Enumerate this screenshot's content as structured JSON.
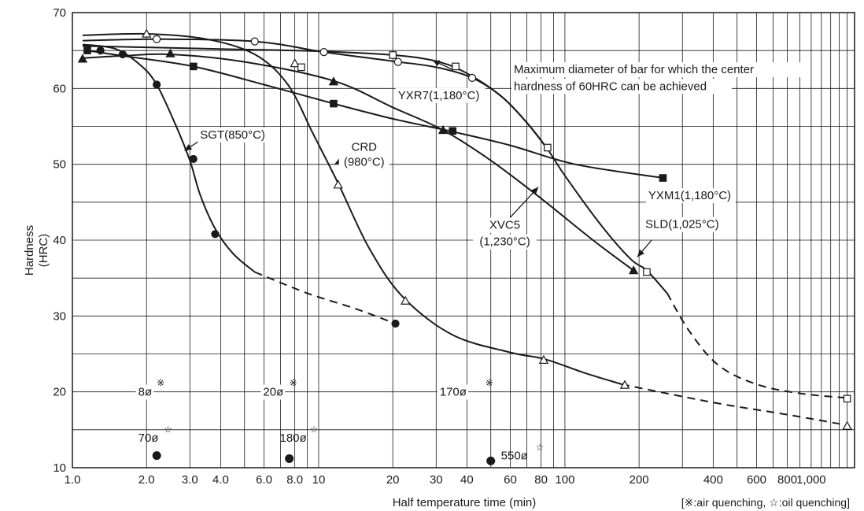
{
  "chart_data": {
    "type": "line",
    "xscale": "log",
    "xlim": [
      1.0,
      1500
    ],
    "ylim": [
      10,
      70
    ],
    "grid": true,
    "xlabel": "Half temperature time (min)",
    "ylabel_lines": [
      "Hardness",
      "(HRC)"
    ],
    "footnote": "[※:air quenching, ☆:oil quenching]",
    "colors": {
      "line": "#1a1a1a",
      "grid": "#1a1a1a",
      "frame": "#1a1a1a"
    },
    "x_ticks": [
      {
        "v": 1.0,
        "label": "1.0"
      },
      {
        "v": 2.0,
        "label": "2.0"
      },
      {
        "v": 3.0,
        "label": "3.0"
      },
      {
        "v": 4.0,
        "label": "4.0"
      },
      {
        "v": 6.0,
        "label": "6.0"
      },
      {
        "v": 8.0,
        "label": "8.0"
      },
      {
        "v": 10,
        "label": "10"
      },
      {
        "v": 20,
        "label": "20"
      },
      {
        "v": 30,
        "label": "30"
      },
      {
        "v": 40,
        "label": "40"
      },
      {
        "v": 60,
        "label": "60"
      },
      {
        "v": 80,
        "label": "80"
      },
      {
        "v": 100,
        "label": "100"
      },
      {
        "v": 200,
        "label": "200"
      },
      {
        "v": 400,
        "label": "400"
      },
      {
        "v": 600,
        "label": "600"
      },
      {
        "v": 800,
        "label": "800"
      },
      {
        "v": 1000,
        "label": "1,000"
      }
    ],
    "y_ticks": [
      {
        "v": 10,
        "label": "10"
      },
      {
        "v": 20,
        "label": "20"
      },
      {
        "v": 30,
        "label": "30"
      },
      {
        "v": 40,
        "label": "40"
      },
      {
        "v": 50,
        "label": "50"
      },
      {
        "v": 60,
        "label": "60"
      },
      {
        "v": 70,
        "label": "70"
      }
    ],
    "x_grid": [
      1,
      2,
      3,
      4,
      5,
      6,
      7,
      8,
      9,
      10,
      20,
      30,
      40,
      50,
      60,
      70,
      80,
      90,
      100,
      200,
      300,
      400,
      500,
      600,
      700,
      800,
      900,
      1000,
      1100,
      1200,
      1300,
      1400
    ],
    "y_grid": [
      15,
      20,
      25,
      30,
      35,
      40,
      45,
      50,
      55,
      60,
      65
    ],
    "series": [
      {
        "name": "SGT(850°C)",
        "marker": "circle-filled",
        "solid": [
          [
            1.1,
            65.8
          ],
          [
            1.5,
            65.2
          ],
          [
            1.9,
            63.0
          ],
          [
            2.2,
            60.5
          ],
          [
            2.6,
            55.5
          ],
          [
            3.0,
            50.5
          ],
          [
            3.3,
            46.0
          ],
          [
            3.8,
            41.5
          ],
          [
            4.5,
            38.2
          ],
          [
            5.5,
            35.8
          ]
        ],
        "dashed": [
          [
            5.5,
            35.8
          ],
          [
            9,
            33.0
          ],
          [
            14,
            31.0
          ],
          [
            20.5,
            29.0
          ]
        ],
        "markers": [
          [
            1.3,
            65.0
          ],
          [
            1.6,
            64.5
          ],
          [
            2.2,
            60.5
          ],
          [
            3.1,
            50.7
          ],
          [
            3.8,
            40.8
          ],
          [
            20.5,
            29.0
          ]
        ]
      },
      {
        "name": "CRD",
        "marker": "triangle-open",
        "solid": [
          [
            1.1,
            67.0
          ],
          [
            2.0,
            67.2
          ],
          [
            3.5,
            66.5
          ],
          [
            5.5,
            64.5
          ],
          [
            7.5,
            60.5
          ],
          [
            9.5,
            54.0
          ],
          [
            12,
            47.5
          ],
          [
            16,
            39.0
          ],
          [
            22,
            32.5
          ],
          [
            35,
            27.5
          ],
          [
            60,
            25.2
          ],
          [
            83,
            24.3
          ],
          [
            120,
            22.5
          ],
          [
            170,
            21.0
          ]
        ],
        "dashed": [
          [
            170,
            21.0
          ],
          [
            400,
            18.6
          ],
          [
            800,
            17.0
          ],
          [
            1400,
            15.6
          ]
        ],
        "markers": [
          [
            2.0,
            67.2
          ],
          [
            8.0,
            63.3
          ],
          [
            12,
            47.3
          ],
          [
            22.5,
            32.0
          ],
          [
            82,
            24.2
          ],
          [
            175,
            20.9
          ],
          [
            1400,
            15.5
          ]
        ]
      },
      {
        "name": "YXR7(1,180°C)",
        "marker": "circle-open",
        "solid": [
          [
            1.1,
            66.3
          ],
          [
            2.2,
            66.5
          ],
          [
            5.5,
            66.2
          ],
          [
            10.5,
            64.8
          ],
          [
            20,
            63.6
          ],
          [
            30,
            62.8
          ],
          [
            42,
            61.4
          ],
          [
            55,
            59.0
          ],
          [
            70,
            55.5
          ],
          [
            85,
            52.0
          ]
        ],
        "markers": [
          [
            2.2,
            66.5
          ],
          [
            5.5,
            66.2
          ],
          [
            10.5,
            64.8
          ],
          [
            21,
            63.5
          ],
          [
            42,
            61.4
          ]
        ]
      },
      {
        "name": "XVC5",
        "marker": "triangle-filled",
        "solid": [
          [
            1.1,
            64.0
          ],
          [
            1.6,
            64.3
          ],
          [
            2.5,
            64.5
          ],
          [
            5,
            63.5
          ],
          [
            11.5,
            61.0
          ],
          [
            20,
            57.5
          ],
          [
            32,
            54.5
          ],
          [
            50,
            50.5
          ],
          [
            80,
            45.5
          ],
          [
            130,
            40.0
          ],
          [
            190,
            36.0
          ]
        ],
        "markers": [
          [
            1.1,
            63.9
          ],
          [
            2.5,
            64.6
          ],
          [
            11.5,
            60.9
          ],
          [
            32,
            54.5
          ],
          [
            190,
            36.0
          ]
        ]
      },
      {
        "name": "YXM1(1,180°C)",
        "marker": "square-filled",
        "solid": [
          [
            1.15,
            65.0
          ],
          [
            1.6,
            64.3
          ],
          [
            3.1,
            62.9
          ],
          [
            6,
            60.5
          ],
          [
            11.5,
            58.0
          ],
          [
            20,
            56.0
          ],
          [
            35,
            54.3
          ],
          [
            60,
            52.5
          ],
          [
            110,
            50.0
          ],
          [
            250,
            48.2
          ]
        ],
        "markers": [
          [
            1.15,
            65.0
          ],
          [
            3.1,
            62.9
          ],
          [
            11.5,
            58.0
          ],
          [
            35,
            54.4
          ],
          [
            250,
            48.2
          ]
        ]
      },
      {
        "name": "SLD(1,025°C)",
        "marker": "square-open",
        "solid": [
          [
            1.1,
            65.6
          ],
          [
            4,
            65.2
          ],
          [
            10,
            64.9
          ],
          [
            20,
            64.4
          ],
          [
            30,
            63.6
          ],
          [
            40,
            62.0
          ],
          [
            55,
            59.0
          ],
          [
            70,
            55.5
          ],
          [
            85,
            52.0
          ],
          [
            100,
            48.5
          ],
          [
            140,
            42.0
          ],
          [
            185,
            37.5
          ],
          [
            215,
            36.0
          ],
          [
            260,
            33.0
          ]
        ],
        "dashed": [
          [
            260,
            33.0
          ],
          [
            320,
            28.0
          ],
          [
            420,
            23.5
          ],
          [
            600,
            21.0
          ],
          [
            900,
            19.8
          ],
          [
            1400,
            19.2
          ]
        ],
        "markers": [
          [
            8.5,
            62.8
          ],
          [
            20,
            64.4
          ],
          [
            36,
            62.9
          ],
          [
            85,
            52.2
          ],
          [
            215,
            35.8
          ],
          [
            1400,
            19.1
          ]
        ]
      }
    ],
    "extra_points": {
      "oil_quench": [
        [
          2.2,
          11.6
        ],
        [
          7.6,
          11.2
        ],
        [
          50,
          10.9
        ]
      ]
    },
    "labels": {
      "sgt": "SGT(850°C)",
      "crd_1": "CRD",
      "crd_2": "(980°C)",
      "yxr7": "YXR7(1,180°C)",
      "max_dia_1": "Maximum diameter of bar for which the center",
      "max_dia_2": "hardness of 60HRC can be achieved",
      "yxm1": "YXM1(1,180°C)",
      "xvc5_1": "XVC5",
      "xvc5_2": "(1,230°C)",
      "sld": "SLD(1,025°C)",
      "d8": "8ø",
      "d20": "20ø",
      "d170": "170ø",
      "d70": "70ø",
      "d180": "180ø",
      "d550": "550ø",
      "air_mark": "※",
      "oil_mark": "☆"
    }
  }
}
